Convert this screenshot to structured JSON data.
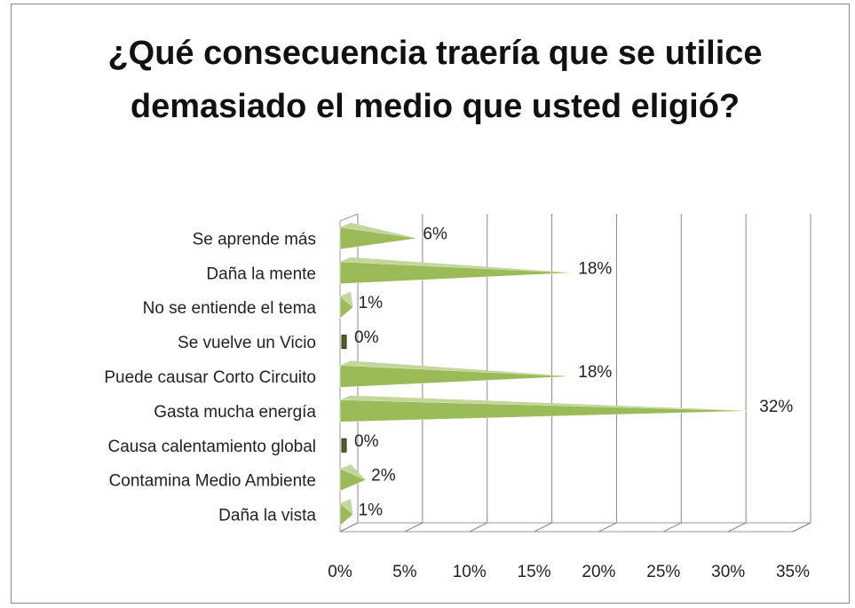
{
  "chart_data": {
    "type": "bar",
    "orientation": "horizontal",
    "title": "¿Qué consecuencia traería que se utilice demasiado el medio que usted eligió?",
    "categories": [
      "Se aprende más",
      "Daña la mente",
      "No se entiende el tema",
      "Se vuelve un Vicio",
      "Puede causar Corto Circuito",
      "Gasta mucha energía",
      "Causa calentamiento global",
      "Contamina Medio Ambiente",
      "Daña la vista"
    ],
    "values": [
      6,
      18,
      1,
      0,
      18,
      32,
      0,
      2,
      1
    ],
    "value_labels": [
      "6%",
      "18%",
      "1%",
      "0%",
      "18%",
      "32%",
      "0%",
      "2%",
      "1%"
    ],
    "color": "#9bbb59",
    "xlim": [
      0,
      35
    ],
    "xticks": [
      {
        "value": 0,
        "label": "0%"
      },
      {
        "value": 5,
        "label": "5%"
      },
      {
        "value": 10,
        "label": "10%"
      },
      {
        "value": 15,
        "label": "15%"
      },
      {
        "value": 20,
        "label": "20%"
      },
      {
        "value": 25,
        "label": "25%"
      },
      {
        "value": 30,
        "label": "30%"
      },
      {
        "value": 35,
        "label": "35%"
      }
    ],
    "grid": true
  }
}
